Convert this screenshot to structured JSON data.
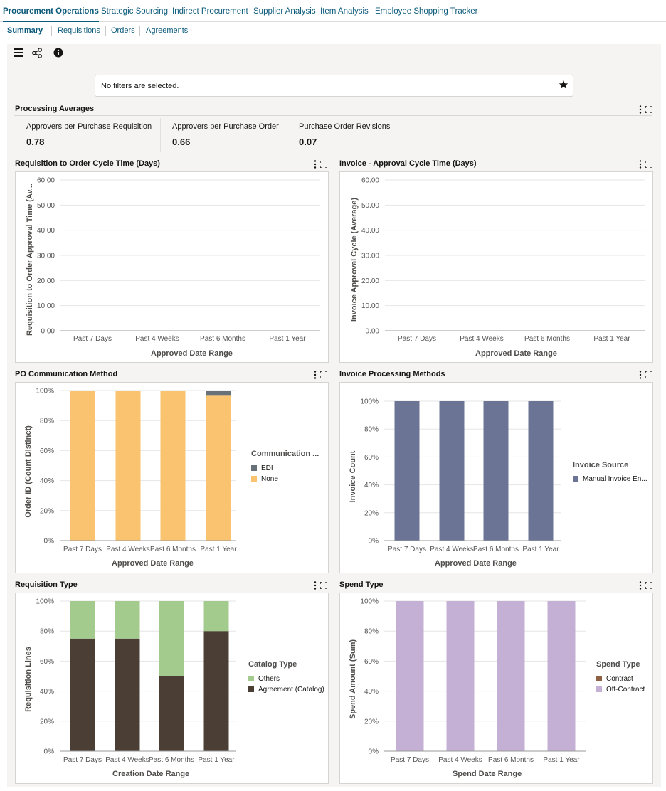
{
  "nav": {
    "top_tabs": [
      "Procurement Operations",
      "Strategic Sourcing",
      "Indirect Procurement",
      "Supplier Analysis",
      "Item Analysis",
      "Employee Shopping Tracker"
    ],
    "sub_tabs": [
      "Summary",
      "Requisitions",
      "Orders",
      "Agreements"
    ]
  },
  "toolbar": {
    "icons": [
      "menu-icon",
      "share-icon",
      "info-icon"
    ]
  },
  "filter": {
    "text": "No filters are selected.",
    "icon": "star-icon"
  },
  "processing_averages": {
    "title": "Processing Averages",
    "kpis": [
      {
        "label": "Approvers per Purchase Requisition",
        "value": "0.78"
      },
      {
        "label": "Approvers per Purchase Order",
        "value": "0.66"
      },
      {
        "label": "Purchase Order Revisions",
        "value": "0.07"
      }
    ]
  },
  "panels": {
    "req_cycle": {
      "title": "Requisition to Order Cycle Time (Days)",
      "xlabel": "Approved Date Range",
      "ylabel": "Requisition to Order Approval Time (Av..."
    },
    "inv_cycle": {
      "title": "Invoice - Approval Cycle Time (Days)",
      "xlabel": "Approved Date Range",
      "ylabel": "Invoice Approval Cycle (Average)"
    },
    "po_comm": {
      "title": "PO Communication Method",
      "xlabel": "Approved Date Range",
      "ylabel": "Order ID (Count Distinct)",
      "legend_title": "Communication ..."
    },
    "inv_proc": {
      "title": "Invoice Processing Methods",
      "xlabel": "Approved Date Range",
      "ylabel": "Invoice Count",
      "legend_title": "Invoice Source"
    },
    "req_type": {
      "title": "Requisition Type",
      "xlabel": "Creation Date Range",
      "ylabel": "Requisition Lines",
      "legend_title": "Catalog Type"
    },
    "spend_type": {
      "title": "Spend Type",
      "xlabel": "Spend Date Range",
      "ylabel": "Spend Amount (Sum)",
      "legend_title": "Spend Type"
    }
  },
  "chart_data": [
    {
      "type": "line",
      "title": "Requisition to Order Cycle Time (Days)",
      "categories": [
        "Past 7 Days",
        "Past 4 Weeks",
        "Past 6 Months",
        "Past 1 Year"
      ],
      "series": [],
      "yticks": [
        "0.00",
        "10.00",
        "20.00",
        "30.00",
        "40.00",
        "50.00",
        "60.00"
      ],
      "ylim": [
        0,
        60
      ],
      "xlabel": "Approved Date Range",
      "ylabel": "Requisition to Order Approval Time (Av...",
      "grid": true
    },
    {
      "type": "line",
      "title": "Invoice - Approval Cycle Time (Days)",
      "categories": [
        "Past 7 Days",
        "Past 4 Weeks",
        "Past 6 Months",
        "Past 1 Year"
      ],
      "series": [],
      "yticks": [
        "0.00",
        "10.00",
        "20.00",
        "30.00",
        "40.00",
        "50.00",
        "60.00"
      ],
      "ylim": [
        0,
        60
      ],
      "xlabel": "Approved Date Range",
      "ylabel": "Invoice Approval Cycle (Average)",
      "grid": true
    },
    {
      "type": "bar",
      "stacked": true,
      "title": "PO Communication Method",
      "categories": [
        "Past 7 Days",
        "Past 4 Weeks",
        "Past 6 Months",
        "Past 1 Year"
      ],
      "series": [
        {
          "name": "None",
          "values": [
            100,
            100,
            100,
            97
          ],
          "color": "#f9c36f"
        },
        {
          "name": "EDI",
          "values": [
            0,
            0,
            0,
            3
          ],
          "color": "#687178"
        }
      ],
      "legend": [
        "EDI",
        "None"
      ],
      "yticks": [
        "0%",
        "20%",
        "40%",
        "60%",
        "80%",
        "100%"
      ],
      "ylim": [
        0,
        100
      ],
      "xlabel": "Approved Date Range",
      "ylabel": "Order ID (Count Distinct)",
      "legend_title": "Communication ...",
      "legend_position": "right",
      "grid": true
    },
    {
      "type": "bar",
      "stacked": true,
      "title": "Invoice Processing Methods",
      "categories": [
        "Past 7 Days",
        "Past 4 Weeks",
        "Past 6 Months",
        "Past 1 Year"
      ],
      "series": [
        {
          "name": "Manual Invoice En...",
          "values": [
            100,
            100,
            100,
            100
          ],
          "color": "#6b7494"
        }
      ],
      "legend": [
        "Manual Invoice En..."
      ],
      "yticks": [
        "0%",
        "20%",
        "40%",
        "60%",
        "80%",
        "100%"
      ],
      "ylim": [
        0,
        100
      ],
      "xlabel": "Approved Date Range",
      "ylabel": "Invoice Count",
      "legend_title": "Invoice Source",
      "legend_position": "right",
      "grid": true
    },
    {
      "type": "bar",
      "stacked": true,
      "title": "Requisition Type",
      "categories": [
        "Past 7 Days",
        "Past 4 Weeks",
        "Past 6 Months",
        "Past 1 Year"
      ],
      "series": [
        {
          "name": "Agreement (Catalog)",
          "values": [
            75,
            75,
            50,
            80
          ],
          "color": "#4b3f35"
        },
        {
          "name": "Others",
          "values": [
            25,
            25,
            50,
            20
          ],
          "color": "#a3cb8d"
        }
      ],
      "legend": [
        "Others",
        "Agreement (Catalog)"
      ],
      "yticks": [
        "0%",
        "20%",
        "40%",
        "60%",
        "80%",
        "100%"
      ],
      "ylim": [
        0,
        100
      ],
      "xlabel": "Creation Date Range",
      "ylabel": "Requisition Lines",
      "legend_title": "Catalog Type",
      "legend_position": "right",
      "grid": true
    },
    {
      "type": "bar",
      "stacked": true,
      "title": "Spend Type",
      "categories": [
        "Past 7 Days",
        "Past 4 Weeks",
        "Past 6 Months",
        "Past 1 Year"
      ],
      "series": [
        {
          "name": "Contract",
          "values": [
            0,
            0,
            0,
            0
          ],
          "color": "#8d6142"
        },
        {
          "name": "Off-Contract",
          "values": [
            100,
            100,
            100,
            100
          ],
          "color": "#c4b0d4"
        }
      ],
      "legend": [
        "Contract",
        "Off-Contract"
      ],
      "yticks": [
        "0%",
        "20%",
        "40%",
        "60%",
        "80%",
        "100%"
      ],
      "ylim": [
        0,
        100
      ],
      "xlabel": "Spend Date Range",
      "ylabel": "Spend Amount (Sum)",
      "legend_title": "Spend Type",
      "legend_position": "right",
      "grid": true
    }
  ]
}
